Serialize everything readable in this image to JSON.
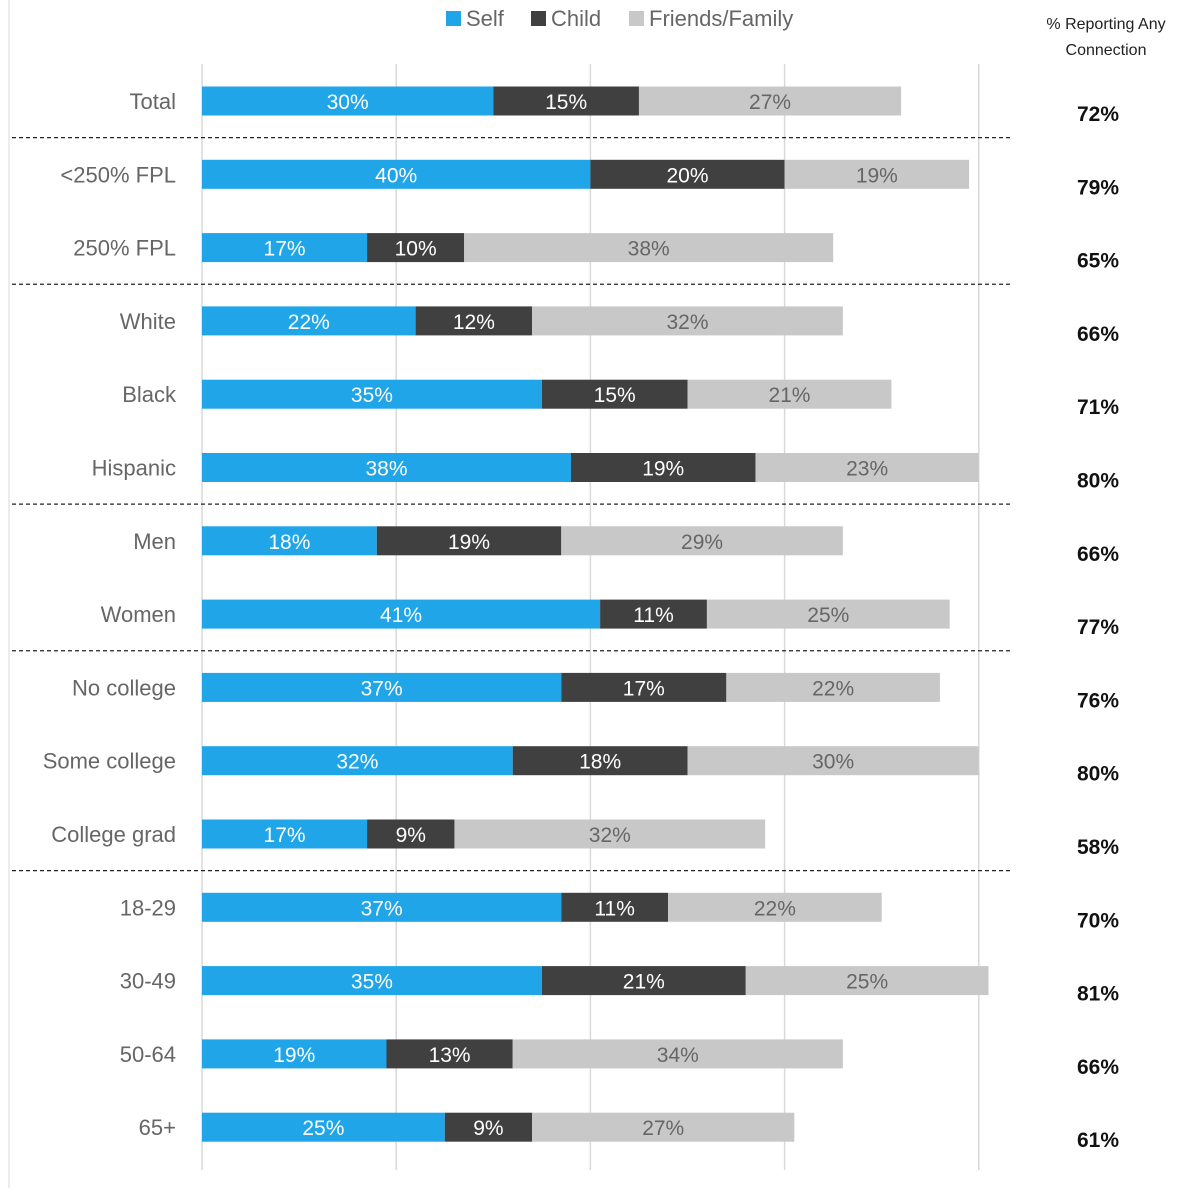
{
  "chart_data": {
    "type": "bar",
    "orientation": "horizontal",
    "stacked": true,
    "xlim": [
      0,
      80
    ],
    "grid": true,
    "legend_placement": "top",
    "categories": [
      "Total",
      "<250% FPL",
      "250% FPL",
      "White",
      "Black",
      "Hispanic",
      "Men",
      "Women",
      "No college",
      "Some college",
      "College grad",
      "18-29",
      "30-49",
      "50-64",
      "65+"
    ],
    "series": [
      {
        "name": "Self",
        "color": "#1fa5e8",
        "text_color": "#ffffff",
        "values": [
          30,
          40,
          17,
          22,
          35,
          38,
          18,
          41,
          37,
          32,
          17,
          37,
          35,
          19,
          25
        ],
        "labels": [
          "30%",
          "40%",
          "17%",
          "22%",
          "35%",
          "38%",
          "18%",
          "41%",
          "37%",
          "32%",
          "17%",
          "37%",
          "35%",
          "19%",
          "25%"
        ]
      },
      {
        "name": "Child",
        "color": "#404040",
        "text_color": "#ffffff",
        "values": [
          15,
          20,
          10,
          12,
          15,
          19,
          19,
          11,
          17,
          18,
          9,
          11,
          21,
          13,
          9
        ],
        "labels": [
          "15%",
          "20%",
          "10%",
          "12%",
          "15%",
          "19%",
          "19%",
          "11%",
          "17%",
          "18%",
          "9%",
          "11%",
          "21%",
          "13%",
          "9%"
        ]
      },
      {
        "name": "Friends/Family",
        "color": "#c8c8c8",
        "text_color": "#666666",
        "values": [
          27,
          19,
          38,
          32,
          21,
          23,
          29,
          25,
          22,
          30,
          32,
          22,
          25,
          34,
          27
        ],
        "labels": [
          "27%",
          "19%",
          "38%",
          "32%",
          "21%",
          "23%",
          "29%",
          "25%",
          "22%",
          "30%",
          "32%",
          "22%",
          "25%",
          "34%",
          "27%"
        ]
      }
    ],
    "totals_header": [
      "% Reporting Any",
      "Connection"
    ],
    "totals": [
      "72%",
      "79%",
      "65%",
      "66%",
      "71%",
      "80%",
      "66%",
      "77%",
      "76%",
      "80%",
      "58%",
      "70%",
      "81%",
      "66%",
      "61%"
    ],
    "group_separators_after": [
      0,
      2,
      5,
      7,
      10
    ]
  }
}
